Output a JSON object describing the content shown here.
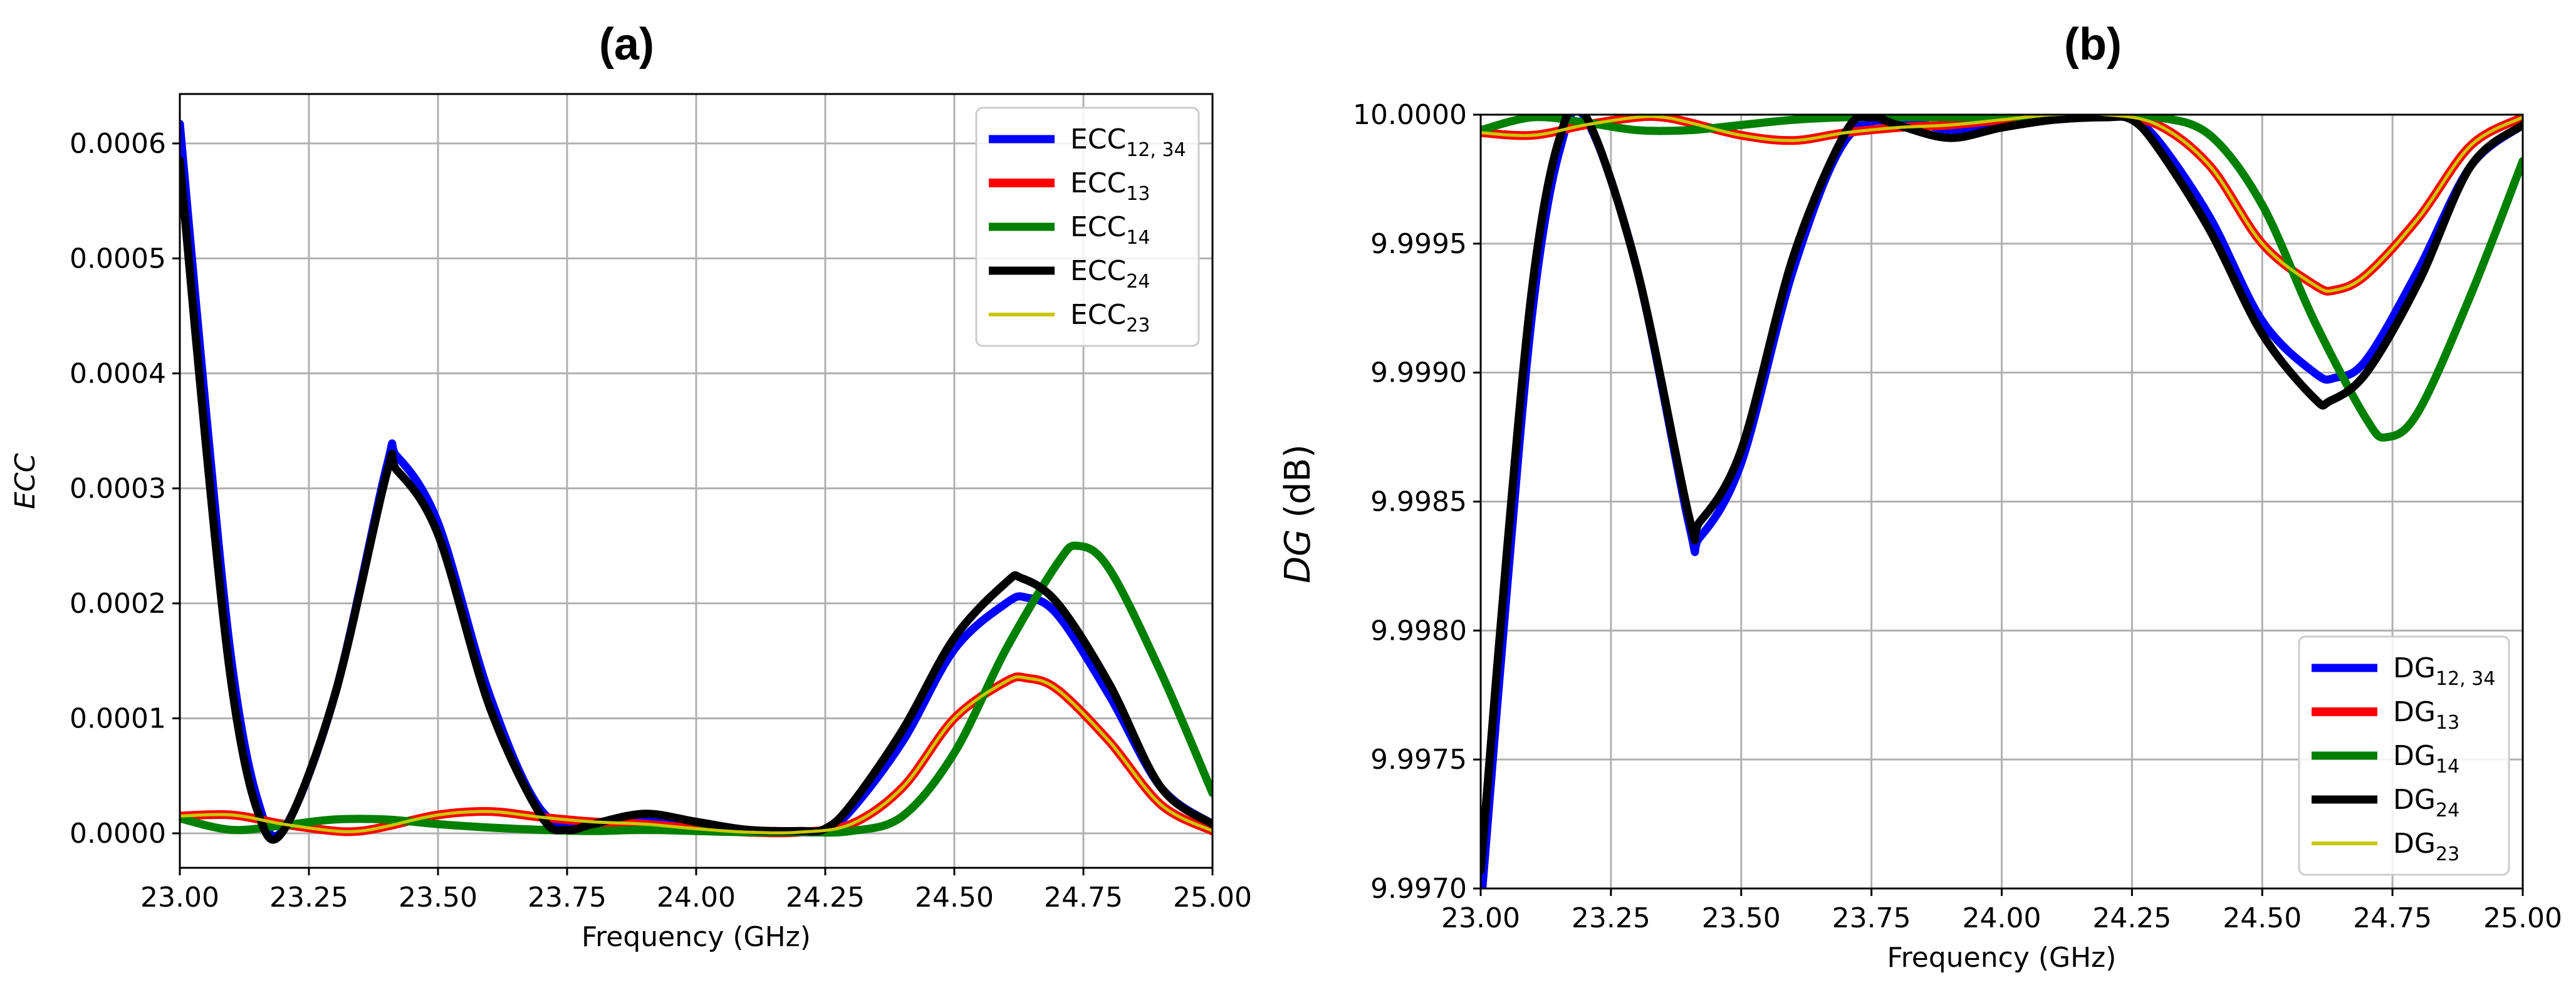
{
  "chart_data": [
    {
      "type": "line",
      "title": "(a)",
      "xlabel": "Frequency (GHz)",
      "ylabel": "ECC",
      "xlim": [
        23.0,
        25.0
      ],
      "ylim": [
        -3e-05,
        0.000643
      ],
      "xticks": [
        23.0,
        23.25,
        23.5,
        23.75,
        24.0,
        24.25,
        24.5,
        24.75,
        25.0
      ],
      "xtick_labels": [
        "23.00",
        "23.25",
        "23.50",
        "23.75",
        "24.00",
        "24.25",
        "24.50",
        "24.75",
        "25.00"
      ],
      "yticks": [
        0.0,
        0.0001,
        0.0002,
        0.0003,
        0.0004,
        0.0005,
        0.0006
      ],
      "ytick_labels": [
        "0.0000",
        "0.0001",
        "0.0002",
        "0.0003",
        "0.0004",
        "0.0005",
        "0.0006"
      ],
      "grid": true,
      "legend_position": "top-right",
      "series": [
        {
          "name": "ECC",
          "sub": "12, 34",
          "color": "#0000ff",
          "style": "solid",
          "x": [
            23.0,
            23.05,
            23.1,
            23.15,
            23.2,
            23.3,
            23.4,
            23.42,
            23.5,
            23.6,
            23.7,
            23.8,
            23.9,
            24.0,
            24.1,
            24.2,
            24.25,
            24.3,
            24.4,
            24.5,
            24.6,
            24.64,
            24.7,
            24.8,
            24.9,
            25.0
          ],
          "y": [
            0.000617,
            0.00037,
            0.00015,
            3e-05,
            3e-06,
            0.00012,
            0.000318,
            0.000328,
            0.00027,
            0.00012,
            2e-05,
            4e-06,
            1.2e-05,
            8e-06,
            2e-06,
            1e-06,
            3e-06,
            2e-05,
            8e-05,
            0.00016,
            0.0002,
            0.000205,
            0.00019,
            0.00012,
            4e-05,
            8e-06
          ]
        },
        {
          "name": "ECC",
          "sub": "13",
          "color": "#ff0000",
          "style": "outlined",
          "x": [
            23.0,
            23.1,
            23.2,
            23.3,
            23.35,
            23.4,
            23.5,
            23.6,
            23.7,
            23.8,
            23.9,
            24.0,
            24.1,
            24.2,
            24.3,
            24.4,
            24.5,
            24.6,
            24.64,
            24.7,
            24.8,
            24.9,
            25.0
          ],
          "y": [
            1.5e-05,
            1.6e-05,
            8e-06,
            2e-06,
            2e-06,
            6e-06,
            1.6e-05,
            1.9e-05,
            1.4e-05,
            1e-05,
            8e-06,
            4e-06,
            1e-06,
            1e-06,
            8e-06,
            4e-05,
            0.0001,
            0.000132,
            0.000135,
            0.000125,
            8e-05,
            2.5e-05,
            2e-06
          ]
        },
        {
          "name": "ECC",
          "sub": "14",
          "color": "#008000",
          "style": "solid",
          "x": [
            23.0,
            23.1,
            23.2,
            23.3,
            23.4,
            23.5,
            23.6,
            23.7,
            23.8,
            23.9,
            24.0,
            24.1,
            24.2,
            24.3,
            24.4,
            24.5,
            24.6,
            24.7,
            24.74,
            24.8,
            24.9,
            25.0
          ],
          "y": [
            1.3e-05,
            3e-06,
            7e-06,
            1.2e-05,
            1.2e-05,
            8e-06,
            5e-06,
            3e-06,
            2e-06,
            3e-06,
            2e-06,
            1e-06,
            1e-06,
            2e-06,
            1.5e-05,
            7e-05,
            0.00016,
            0.000235,
            0.00025,
            0.00023,
            0.00014,
            3.5e-05
          ]
        },
        {
          "name": "ECC",
          "sub": "24",
          "color": "#000000",
          "style": "solid",
          "x": [
            23.0,
            23.05,
            23.1,
            23.15,
            23.2,
            23.3,
            23.4,
            23.42,
            23.5,
            23.6,
            23.7,
            23.75,
            23.8,
            23.9,
            24.0,
            24.1,
            24.2,
            24.25,
            24.3,
            24.4,
            24.5,
            24.6,
            24.63,
            24.7,
            24.8,
            24.9,
            25.0
          ],
          "y": [
            0.000585,
            0.00034,
            0.00013,
            2e-05,
            2e-06,
            0.00012,
            0.000312,
            0.000316,
            0.00026,
            0.00011,
            1.5e-05,
            3e-06,
            8e-06,
            1.7e-05,
            1e-05,
            3e-06,
            2e-06,
            4e-06,
            2.5e-05,
            9e-05,
            0.00017,
            0.000218,
            0.000222,
            0.0002,
            0.00013,
            4e-05,
            8e-06
          ]
        },
        {
          "name": "ECC",
          "sub": "23",
          "color": "#c8c800",
          "style": "solid",
          "x": [
            23.0,
            23.1,
            23.2,
            23.3,
            23.35,
            23.4,
            23.5,
            23.6,
            23.7,
            23.8,
            23.9,
            24.0,
            24.1,
            24.2,
            24.3,
            24.4,
            24.5,
            24.6,
            24.64,
            24.7,
            24.8,
            24.9,
            25.0
          ],
          "y": [
            1.5e-05,
            1.6e-05,
            8e-06,
            2e-06,
            2e-06,
            6e-06,
            1.6e-05,
            1.9e-05,
            1.4e-05,
            1e-05,
            8e-06,
            4e-06,
            1e-06,
            1e-06,
            8e-06,
            4e-05,
            0.0001,
            0.000132,
            0.000135,
            0.000125,
            8e-05,
            2.5e-05,
            2e-06
          ]
        }
      ]
    },
    {
      "type": "line",
      "title": "(b)",
      "xlabel": "Frequency (GHz)",
      "ylabel": "DG",
      "ylabel_unit": "(dB)",
      "xlim": [
        23.0,
        25.0
      ],
      "ylim": [
        9.997,
        10.0
      ],
      "xticks": [
        23.0,
        23.25,
        23.5,
        23.75,
        24.0,
        24.25,
        24.5,
        24.75,
        25.0
      ],
      "xtick_labels": [
        "23.00",
        "23.25",
        "23.50",
        "23.75",
        "24.00",
        "24.25",
        "24.50",
        "24.75",
        "25.00"
      ],
      "yticks": [
        9.997,
        9.9975,
        9.998,
        9.9985,
        9.999,
        9.9995,
        10.0
      ],
      "ytick_labels": [
        "9.9970",
        "9.9975",
        "9.9980",
        "9.9985",
        "9.9990",
        "9.9995",
        "10.0000"
      ],
      "grid": true,
      "legend_position": "bottom-right",
      "series": [
        {
          "name": "DG",
          "sub": "12, 34",
          "color": "#0000ff",
          "style": "solid",
          "x": [
            23.0,
            23.05,
            23.1,
            23.15,
            23.2,
            23.3,
            23.4,
            23.42,
            23.5,
            23.6,
            23.7,
            23.8,
            23.9,
            24.0,
            24.1,
            24.2,
            24.25,
            24.3,
            24.4,
            24.5,
            24.6,
            24.64,
            24.7,
            24.8,
            24.9,
            25.0
          ],
          "y": [
            9.99692,
            9.99815,
            9.99925,
            9.99985,
            9.99999,
            9.9994,
            9.99841,
            9.99836,
            9.99865,
            9.9994,
            9.9999,
            9.99998,
            9.99994,
            9.99996,
            9.99999,
            10.0,
            9.99998,
            9.9999,
            9.9996,
            9.9992,
            9.999,
            9.99898,
            9.99905,
            9.9994,
            9.9998,
            9.99996
          ]
        },
        {
          "name": "DG",
          "sub": "13",
          "color": "#ff0000",
          "style": "outlined",
          "x": [
            23.0,
            23.1,
            23.2,
            23.3,
            23.35,
            23.4,
            23.5,
            23.6,
            23.7,
            23.8,
            23.9,
            24.0,
            24.1,
            24.2,
            24.3,
            24.4,
            24.5,
            24.6,
            24.64,
            24.7,
            24.8,
            24.9,
            25.0
          ],
          "y": [
            9.99993,
            9.99992,
            9.99996,
            9.99999,
            9.99999,
            9.99997,
            9.99992,
            9.9999,
            9.99993,
            9.99995,
            9.99996,
            9.99998,
            10.0,
            10.0,
            9.99996,
            9.9998,
            9.9995,
            9.99934,
            9.99932,
            9.99938,
            9.9996,
            9.99988,
            9.99999
          ]
        },
        {
          "name": "DG",
          "sub": "14",
          "color": "#008000",
          "style": "solid",
          "x": [
            23.0,
            23.1,
            23.2,
            23.3,
            23.4,
            23.5,
            23.6,
            23.7,
            23.8,
            23.9,
            24.0,
            24.1,
            24.2,
            24.3,
            24.4,
            24.5,
            24.6,
            24.7,
            24.74,
            24.8,
            24.9,
            25.0
          ],
          "y": [
            9.99994,
            9.99999,
            9.99997,
            9.99994,
            9.99994,
            9.99996,
            9.99998,
            9.99999,
            9.99999,
            9.99999,
            9.99999,
            10.0,
            10.0,
            9.99999,
            9.99992,
            9.99965,
            9.9992,
            9.99882,
            9.99875,
            9.99885,
            9.9993,
            9.99982
          ]
        },
        {
          "name": "DG",
          "sub": "24",
          "color": "#000000",
          "style": "solid",
          "x": [
            23.0,
            23.05,
            23.1,
            23.15,
            23.2,
            23.3,
            23.4,
            23.42,
            23.5,
            23.6,
            23.7,
            23.75,
            23.8,
            23.9,
            24.0,
            24.1,
            24.2,
            24.25,
            24.3,
            24.4,
            24.5,
            24.6,
            24.63,
            24.7,
            24.8,
            24.9,
            25.0
          ],
          "y": [
            9.99707,
            9.9983,
            9.99935,
            9.9999,
            10.0,
            9.9994,
            9.99844,
            9.99842,
            9.9987,
            9.99945,
            9.99993,
            9.99999,
            9.99996,
            9.99991,
            9.99995,
            9.99998,
            9.99999,
            9.99998,
            9.99987,
            9.99955,
            9.99915,
            9.9989,
            9.99889,
            9.999,
            9.99935,
            9.9998,
            9.99996
          ]
        },
        {
          "name": "DG",
          "sub": "23",
          "color": "#c8c800",
          "style": "solid",
          "x": [
            23.0,
            23.1,
            23.2,
            23.3,
            23.35,
            23.4,
            23.5,
            23.6,
            23.7,
            23.8,
            23.9,
            24.0,
            24.1,
            24.2,
            24.3,
            24.4,
            24.5,
            24.6,
            24.64,
            24.7,
            24.8,
            24.9,
            25.0
          ],
          "y": [
            9.99993,
            9.99992,
            9.99996,
            9.99999,
            9.99999,
            9.99997,
            9.99992,
            9.9999,
            9.99993,
            9.99995,
            9.99996,
            9.99998,
            10.0,
            10.0,
            9.99996,
            9.9998,
            9.9995,
            9.99934,
            9.99932,
            9.99938,
            9.9996,
            9.99988,
            9.99999
          ]
        }
      ]
    }
  ]
}
